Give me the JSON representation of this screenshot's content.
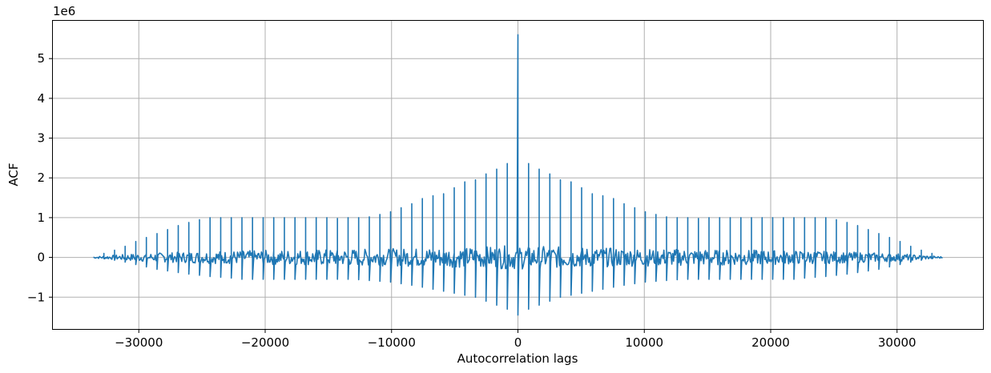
{
  "chart_data": {
    "type": "line",
    "title": "",
    "xlabel": "Autocorrelation lags",
    "ylabel": "ACF",
    "y_multiplier_label": "1e6",
    "x_ticks": [
      -30000,
      -20000,
      -10000,
      0,
      10000,
      20000,
      30000
    ],
    "x_tick_labels": [
      "−30000",
      "−20000",
      "−10000",
      "0",
      "10000",
      "20000",
      "30000"
    ],
    "y_ticks": [
      -1,
      0,
      1,
      2,
      3,
      4,
      5
    ],
    "y_tick_labels": [
      "−1",
      "0",
      "1",
      "2",
      "3",
      "4",
      "5"
    ],
    "xlim": [
      -36800,
      36800
    ],
    "ylim": [
      -1.8,
      5.95
    ],
    "grid": true,
    "series": [
      {
        "color": "#1f77b4",
        "center_peak": 5.6,
        "spike_spacing": 840,
        "lag_extent": 33600,
        "spike_peaks": [
          [
            840,
            2.36
          ],
          [
            1680,
            2.22
          ],
          [
            2520,
            2.1
          ],
          [
            3360,
            1.95
          ],
          [
            4200,
            1.9
          ],
          [
            5040,
            1.75
          ],
          [
            5880,
            1.6
          ],
          [
            6720,
            1.55
          ],
          [
            7560,
            1.48
          ],
          [
            8400,
            1.35
          ],
          [
            9240,
            1.25
          ],
          [
            10080,
            1.15
          ],
          [
            10920,
            1.08
          ],
          [
            11760,
            1.02
          ],
          [
            12600,
            1.0
          ],
          [
            13440,
            1.0
          ],
          [
            14280,
            0.98
          ],
          [
            15120,
            1.0
          ],
          [
            15960,
            1.0
          ],
          [
            16800,
            1.0
          ],
          [
            17640,
            1.0
          ],
          [
            18480,
            1.0
          ],
          [
            19320,
            1.0
          ],
          [
            20160,
            1.0
          ],
          [
            21000,
            1.0
          ],
          [
            21840,
            1.0
          ],
          [
            22680,
            1.0
          ],
          [
            23520,
            1.0
          ],
          [
            24360,
            1.0
          ],
          [
            25200,
            0.95
          ],
          [
            26040,
            0.88
          ],
          [
            26880,
            0.8
          ],
          [
            27720,
            0.7
          ],
          [
            28560,
            0.6
          ],
          [
            29400,
            0.5
          ],
          [
            30240,
            0.4
          ],
          [
            31080,
            0.28
          ],
          [
            31920,
            0.18
          ],
          [
            32760,
            0.1
          ]
        ],
        "spike_troughs": [
          [
            0,
            -1.45
          ],
          [
            840,
            -1.3
          ],
          [
            1680,
            -1.2
          ],
          [
            2520,
            -1.1
          ],
          [
            3360,
            -1.0
          ],
          [
            4200,
            -0.95
          ],
          [
            5040,
            -0.9
          ],
          [
            5880,
            -0.85
          ],
          [
            6720,
            -0.8
          ],
          [
            7560,
            -0.75
          ],
          [
            8400,
            -0.7
          ],
          [
            9240,
            -0.66
          ],
          [
            10080,
            -0.62
          ],
          [
            10920,
            -0.6
          ],
          [
            11760,
            -0.58
          ],
          [
            12600,
            -0.56
          ],
          [
            13440,
            -0.55
          ],
          [
            14280,
            -0.55
          ],
          [
            15120,
            -0.55
          ],
          [
            15960,
            -0.55
          ],
          [
            16800,
            -0.55
          ],
          [
            17640,
            -0.55
          ],
          [
            18480,
            -0.55
          ],
          [
            19320,
            -0.55
          ],
          [
            20160,
            -0.55
          ],
          [
            21000,
            -0.55
          ],
          [
            21840,
            -0.55
          ],
          [
            22680,
            -0.52
          ],
          [
            23520,
            -0.5
          ],
          [
            24360,
            -0.48
          ],
          [
            25200,
            -0.45
          ],
          [
            26040,
            -0.42
          ],
          [
            26880,
            -0.38
          ],
          [
            27720,
            -0.34
          ],
          [
            28560,
            -0.3
          ],
          [
            29400,
            -0.24
          ],
          [
            30240,
            -0.18
          ],
          [
            31080,
            -0.12
          ],
          [
            31920,
            -0.07
          ],
          [
            32760,
            -0.03
          ]
        ],
        "noise_envelope": [
          [
            0,
            0.3
          ],
          [
            5000,
            0.25
          ],
          [
            10000,
            0.22
          ],
          [
            15000,
            0.2
          ],
          [
            20000,
            0.18
          ],
          [
            25000,
            0.15
          ],
          [
            30000,
            0.1
          ],
          [
            33600,
            0.02
          ]
        ]
      }
    ]
  }
}
